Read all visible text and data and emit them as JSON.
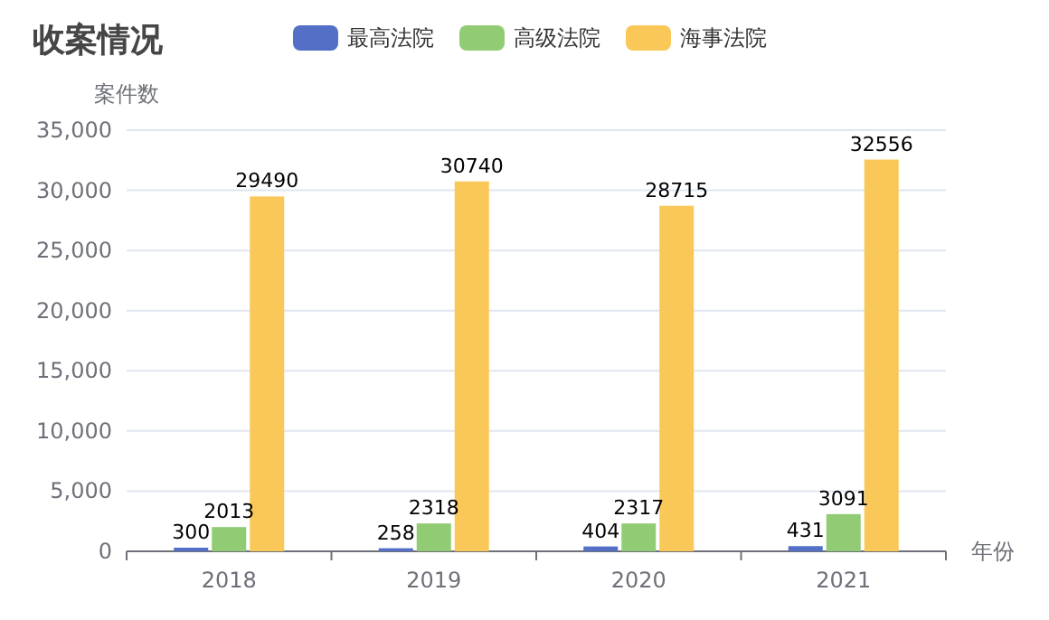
{
  "chart_data": {
    "type": "bar",
    "title": "收案情况",
    "ylabel": "案件数",
    "xlabel": "年份",
    "categories": [
      "2018",
      "2019",
      "2020",
      "2021"
    ],
    "series": [
      {
        "name": "最高法院",
        "color": "#5470c6",
        "values": [
          300,
          258,
          404,
          431
        ]
      },
      {
        "name": "高级法院",
        "color": "#91cc75",
        "values": [
          2013,
          2318,
          2317,
          3091
        ]
      },
      {
        "name": "海事法院",
        "color": "#fac858",
        "values": [
          29490,
          30740,
          28715,
          32556
        ]
      }
    ],
    "ylim": [
      0,
      35000
    ],
    "yticks": [
      0,
      {
        "value": 5000,
        "label": "5,000"
      },
      {
        "value": 10000,
        "label": "10,000"
      },
      {
        "value": 15000,
        "label": "15,000"
      },
      {
        "value": 20000,
        "label": "20,000"
      },
      {
        "value": 25000,
        "label": "25,000"
      },
      {
        "value": 30000,
        "label": "30,000"
      },
      {
        "value": 35000,
        "label": "35,000"
      }
    ],
    "grid": "y",
    "legend": "top",
    "data_labels": true
  }
}
